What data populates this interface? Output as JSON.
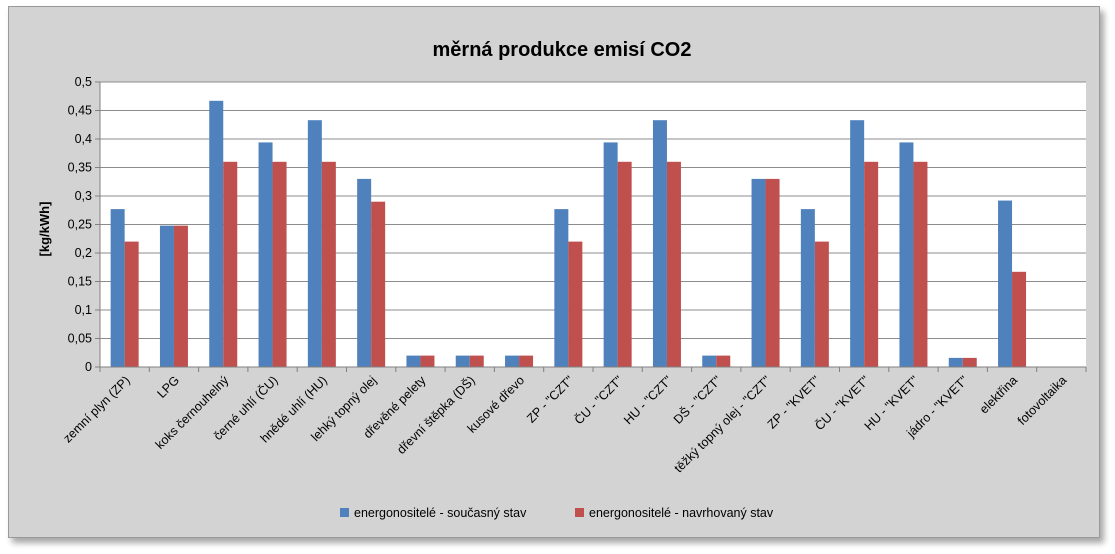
{
  "chart_data": {
    "type": "bar",
    "title": "měrná produkce emisí CO2",
    "xlabel": "",
    "ylabel": "[kg/kWh]",
    "ylim": [
      0,
      0.5
    ],
    "yticks": [
      "0",
      "0,05",
      "0,1",
      "0,15",
      "0,2",
      "0,25",
      "0,3",
      "0,35",
      "0,4",
      "0,45",
      "0,5"
    ],
    "grid": true,
    "legend_position": "bottom",
    "categories": [
      "zemní plyn (ZP)",
      "LPG",
      "koks černouhelný",
      "černé uhlí (ČU)",
      "hnědé uhlí (HU)",
      "lehký topný olej",
      "dřevěné pelety",
      "dřevní štěpka (DŠ)",
      "kusové dřevo",
      "ZP - \"CZT\"",
      "ČU - \"CZT\"",
      "HU - \"CZT\"",
      "DŠ - \"CZT\"",
      "těžký topný olej - \"CZT\"",
      "ZP - \"KVET\"",
      "ČU - \"KVET\"",
      "HU - \"KVET\"",
      "jádro - \"KVET\"",
      "elektřina",
      "fotovoltaika"
    ],
    "series": [
      {
        "name": "energonositelé - současný stav",
        "color": "#4f81bd",
        "values": [
          0.277,
          0.248,
          0.467,
          0.394,
          0.433,
          0.33,
          0.02,
          0.02,
          0.02,
          0.277,
          0.394,
          0.433,
          0.02,
          0.33,
          0.277,
          0.433,
          0.394,
          0.016,
          0.292,
          0
        ]
      },
      {
        "name": "energonositelé - navrhovaný stav",
        "color": "#c0504d",
        "values": [
          0.22,
          0.248,
          0.36,
          0.36,
          0.36,
          0.29,
          0.02,
          0.02,
          0.02,
          0.22,
          0.36,
          0.36,
          0.02,
          0.33,
          0.22,
          0.36,
          0.36,
          0.016,
          0.167,
          0
        ]
      }
    ]
  }
}
